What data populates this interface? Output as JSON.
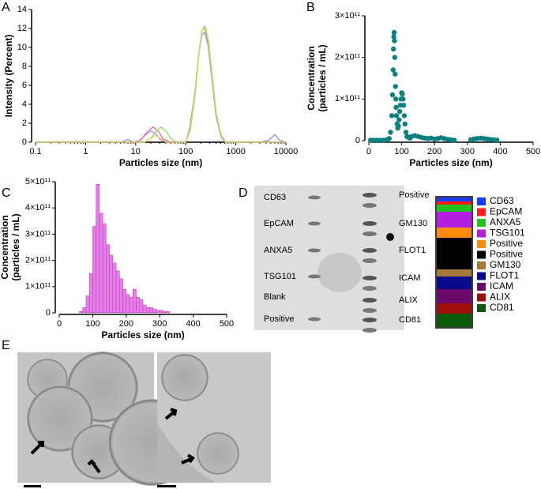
{
  "panel_labels": [
    "A",
    "B",
    "C",
    "D",
    "E"
  ],
  "chart_data": [
    {
      "type": "line",
      "xlabel": "Particles size (nm)",
      "ylabel": [
        "Intensity (Percent)"
      ],
      "xscale": "log",
      "xlim": [
        0.1,
        10000
      ],
      "xticks": [
        0.1,
        1,
        10,
        100,
        1000,
        10000
      ],
      "ylim": [
        0,
        14
      ],
      "yticks": [
        0,
        2,
        4,
        6,
        8,
        10,
        12,
        14
      ],
      "series": [
        {
          "color": "#9b8ce0",
          "x": [
            0.1,
            5,
            7,
            9,
            12,
            16,
            20,
            25,
            32,
            45,
            70,
            100,
            120,
            150,
            180,
            210,
            240,
            280,
            330,
            400,
            500,
            600,
            1000,
            3000,
            4500,
            6000,
            7500,
            10000
          ],
          "values": [
            0,
            0,
            0.3,
            0,
            0.2,
            0.8,
            1.2,
            0.9,
            0.2,
            0,
            0,
            0,
            1.5,
            5,
            9,
            11.3,
            11.6,
            10.2,
            6.8,
            2.8,
            0.7,
            0,
            0,
            0,
            0.2,
            0.8,
            0.2,
            0
          ]
        },
        {
          "color": "#e46a8e",
          "x": [
            0.1,
            10,
            13,
            17,
            22,
            28,
            36,
            50,
            100,
            120,
            150,
            180,
            210,
            240,
            280,
            330,
            400,
            500,
            620,
            10000
          ],
          "values": [
            0,
            0,
            0.3,
            1.1,
            1.6,
            1.2,
            0.3,
            0,
            0,
            1.2,
            4.6,
            9,
            11.8,
            12.2,
            10.8,
            7.3,
            3.2,
            0.9,
            0,
            0
          ]
        },
        {
          "color": "#8fd67a",
          "x": [
            0.1,
            15,
            20,
            26,
            32,
            40,
            50,
            65,
            100,
            120,
            150,
            180,
            210,
            240,
            280,
            330,
            400,
            500,
            620,
            10000
          ],
          "values": [
            0,
            0,
            0.4,
            1.2,
            1.6,
            1.2,
            0.4,
            0,
            0,
            1.3,
            4.8,
            9.2,
            11.8,
            12,
            10.6,
            7.2,
            3.1,
            0.8,
            0,
            0
          ]
        },
        {
          "color": "#e6d36a",
          "x": [
            0.1,
            15,
            20,
            25,
            32,
            40,
            100,
            125,
            155,
            185,
            215,
            250,
            290,
            340,
            410,
            510,
            640,
            10000
          ],
          "values": [
            0,
            0,
            0.4,
            0.7,
            0.4,
            0,
            0,
            1.3,
            5,
            9.4,
            11.9,
            12.1,
            10.6,
            7,
            3,
            0.8,
            0,
            0
          ]
        }
      ]
    },
    {
      "type": "scatter",
      "xlabel": "Particles size (nm)",
      "ylabel": [
        "Concentration",
        "(particles / mL)"
      ],
      "color": "#0e7f7f",
      "xlim": [
        0,
        500
      ],
      "xticks": [
        0,
        100,
        200,
        300,
        400,
        500
      ],
      "ylim": [
        0,
        300000000000
      ],
      "yticks": [
        0,
        {
          "value": 100000000000,
          "label": "1×10¹¹"
        },
        {
          "value": 200000000000,
          "label": "2×10¹¹"
        },
        {
          "value": 300000000000,
          "label": "3×10¹¹"
        }
      ],
      "x": [
        5,
        15,
        25,
        35,
        45,
        55,
        62,
        66,
        70,
        72,
        74,
        75,
        76,
        77,
        78,
        79,
        80,
        81,
        82,
        83,
        84,
        86,
        88,
        90,
        92,
        94,
        96,
        98,
        100,
        102,
        104,
        106,
        108,
        110,
        113,
        116,
        120,
        125,
        130,
        140,
        150,
        160,
        170,
        180,
        190,
        200,
        210,
        220,
        230,
        240,
        250,
        260,
        310,
        320,
        330,
        340,
        350,
        360,
        370,
        380,
        390
      ],
      "values": [
        1000000000,
        1000000000,
        1000000000,
        1000000000,
        1000000000,
        2000000000,
        5000000000,
        20000000000,
        60000000000,
        110000000000,
        170000000000,
        220000000000,
        250000000000,
        260000000000,
        240000000000,
        200000000000,
        160000000000,
        130000000000,
        100000000000,
        80000000000,
        60000000000,
        40000000000,
        30000000000,
        35000000000,
        50000000000,
        70000000000,
        85000000000,
        100000000000,
        115000000000,
        112000000000,
        100000000000,
        85000000000,
        60000000000,
        40000000000,
        20000000000,
        10000000000,
        8000000000,
        6000000000,
        10000000000,
        12000000000,
        10000000000,
        8000000000,
        6000000000,
        5000000000,
        6000000000,
        4000000000,
        5000000000,
        7000000000,
        5000000000,
        3000000000,
        2000000000,
        1000000000,
        2000000000,
        4000000000,
        5000000000,
        6000000000,
        5000000000,
        4000000000,
        3000000000,
        2000000000,
        1000000000
      ]
    },
    {
      "type": "histogram",
      "xlabel": "Particles size (nm)",
      "ylabel": [
        "Concentration",
        "(particles / mL)"
      ],
      "color": "#e77de8",
      "xlim": [
        0,
        500
      ],
      "xticks": [
        0,
        100,
        200,
        300,
        400,
        500
      ],
      "ylim": [
        0,
        500000000000
      ],
      "yticks": [
        0,
        {
          "value": 100000000000,
          "label": "1×10¹¹"
        },
        {
          "value": 200000000000,
          "label": "2×10¹¹"
        },
        {
          "value": 300000000000,
          "label": "3×10¹¹"
        },
        {
          "value": 400000000000,
          "label": "4×10¹¹"
        },
        {
          "value": 500000000000,
          "label": "5×10¹¹"
        }
      ],
      "bins": [
        60,
        70,
        80,
        90,
        100,
        110,
        120,
        130,
        140,
        150,
        160,
        170,
        180,
        190,
        200,
        210,
        220,
        230,
        240,
        250,
        260,
        270,
        280,
        290,
        300,
        310,
        320,
        330
      ],
      "values": [
        5000000000,
        20000000000,
        65000000000,
        150000000000,
        330000000000,
        490000000000,
        380000000000,
        340000000000,
        260000000000,
        220000000000,
        190000000000,
        160000000000,
        130000000000,
        90000000000,
        70000000000,
        60000000000,
        90000000000,
        60000000000,
        50000000000,
        30000000000,
        20000000000,
        20000000000,
        15000000000,
        10000000000,
        10000000000,
        5000000000,
        5000000000
      ]
    }
  ],
  "blot": {
    "left_labels": [
      "CD63",
      "EpCAM",
      "ANXA5",
      "TSG101",
      "Blank",
      "Positive"
    ],
    "right_labels": [
      "Positive",
      "GM130",
      "FLOT1",
      "ICAM",
      "ALIX",
      "CD81"
    ],
    "legend": [
      {
        "name": "CD63",
        "color": "#1a3cff"
      },
      {
        "name": "EpCAM",
        "color": "#ff1a1a"
      },
      {
        "name": "ANXA5",
        "color": "#1fc21f"
      },
      {
        "name": "TSG101",
        "color": "#b41ee0"
      },
      {
        "name": "Positive",
        "color": "#ff8a0d"
      },
      {
        "name": "Positive",
        "color": "#000000"
      },
      {
        "name": "GM130",
        "color": "#a5793a"
      },
      {
        "name": "FLOT1",
        "color": "#0a0a8c"
      },
      {
        "name": "ICAM",
        "color": "#6a0a6a"
      },
      {
        "name": "ALIX",
        "color": "#a00d0d"
      },
      {
        "name": "CD81",
        "color": "#0a5a0a"
      }
    ]
  }
}
